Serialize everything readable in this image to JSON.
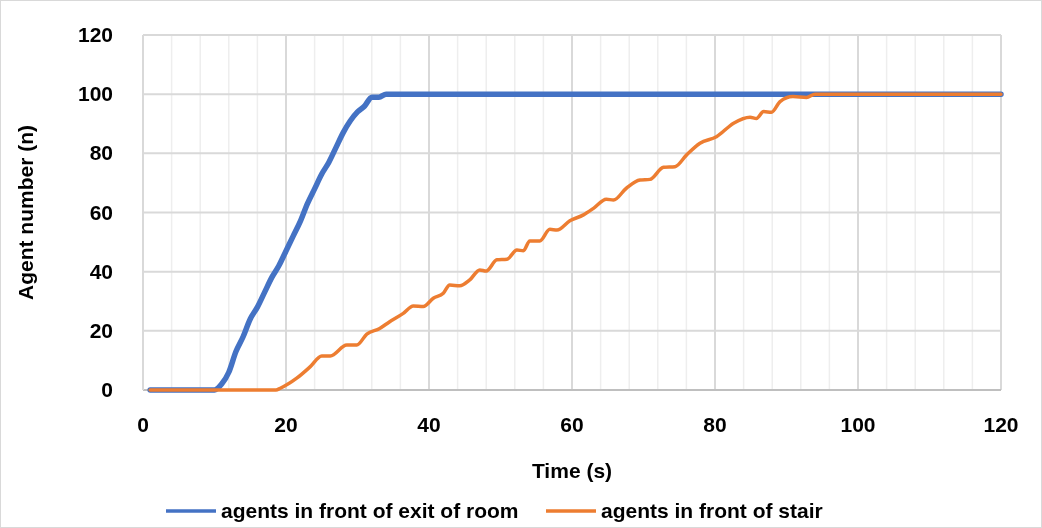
{
  "chart_data": {
    "type": "line",
    "xlabel": "Time (s)",
    "ylabel": "Agent number (n)",
    "xlim": [
      0,
      120
    ],
    "ylim": [
      0,
      120
    ],
    "xticks": [
      0,
      {
        "value": 4,
        "label": null
      },
      {
        "value": 8,
        "label": null
      },
      {
        "value": 12,
        "label": null
      },
      {
        "value": 16,
        "label": null
      },
      20,
      {
        "value": 24,
        "label": null
      },
      {
        "value": 28,
        "label": null
      },
      {
        "value": 32,
        "label": null
      },
      {
        "value": 36,
        "label": null
      },
      40,
      {
        "value": 44,
        "label": null
      },
      {
        "value": 48,
        "label": null
      },
      {
        "value": 52,
        "label": null
      },
      {
        "value": 56,
        "label": null
      },
      60,
      {
        "value": 64,
        "label": null
      },
      {
        "value": 68,
        "label": null
      },
      {
        "value": 72,
        "label": null
      },
      {
        "value": 76,
        "label": null
      },
      80,
      {
        "value": 84,
        "label": null
      },
      {
        "value": 88,
        "label": null
      },
      {
        "value": 92,
        "label": null
      },
      {
        "value": 96,
        "label": null
      },
      100,
      {
        "value": 104,
        "label": null
      },
      {
        "value": 108,
        "label": null
      },
      {
        "value": 112,
        "label": null
      },
      {
        "value": 116,
        "label": null
      },
      120
    ],
    "yticks": [
      0,
      20,
      40,
      60,
      80,
      100,
      120
    ],
    "grid": true,
    "legend": "bottom",
    "marker": "none",
    "line_style": "solid",
    "series": [
      {
        "name": "agents in front of exit of room",
        "color": "#4472c4",
        "x": [
          1,
          10,
          11,
          12,
          13,
          14,
          15,
          16,
          17,
          18,
          19,
          20,
          21,
          22,
          23,
          24,
          25,
          26,
          27,
          28,
          29,
          30,
          31,
          32,
          33,
          34,
          40,
          60,
          80,
          100,
          120
        ],
        "values": [
          0,
          0,
          2,
          6,
          13,
          18,
          24,
          28,
          33,
          38,
          42,
          47,
          52,
          57,
          63,
          68,
          73,
          77,
          82,
          87,
          91,
          94,
          96,
          99,
          99,
          100,
          100,
          100,
          100,
          100,
          100
        ]
      },
      {
        "name": "agents in front of stair",
        "color": "#ed7d31",
        "x": [
          1,
          10,
          18.6,
          19.2,
          21.5,
          23.4,
          25,
          26.2,
          28.5,
          29.9,
          31.3,
          33.1,
          34.5,
          36.4,
          37.8,
          39.2,
          40.6,
          42,
          42.9,
          44.3,
          45.7,
          47.1,
          48,
          49.5,
          50.9,
          52.3,
          53.2,
          54.1,
          55.5,
          56.9,
          57.9,
          59.7,
          61.6,
          63,
          64.8,
          65.8,
          67.6,
          69.5,
          70.9,
          72.8,
          74.4,
          76,
          77.9,
          80.2,
          82.6,
          84.9,
          85.8,
          86.8,
          87.9,
          89.1,
          90.9,
          92.8,
          94,
          100,
          120
        ],
        "values": [
          0,
          0,
          0,
          0.6,
          4,
          7.9,
          11.5,
          11.5,
          15.2,
          15.2,
          18.9,
          20.8,
          23.1,
          25.9,
          28.4,
          28.2,
          31,
          32.7,
          35.5,
          35.2,
          37.2,
          40.6,
          40.2,
          44,
          44.2,
          47.3,
          47.1,
          50.4,
          50.4,
          54.3,
          54.1,
          57.2,
          59.2,
          61.4,
          64.5,
          64.2,
          68.2,
          71,
          71.2,
          75.3,
          75.5,
          79.4,
          83.4,
          85.6,
          90.2,
          92.2,
          91.8,
          94.1,
          93.9,
          97.5,
          99.2,
          98.9,
          100,
          100,
          100
        ]
      }
    ]
  }
}
